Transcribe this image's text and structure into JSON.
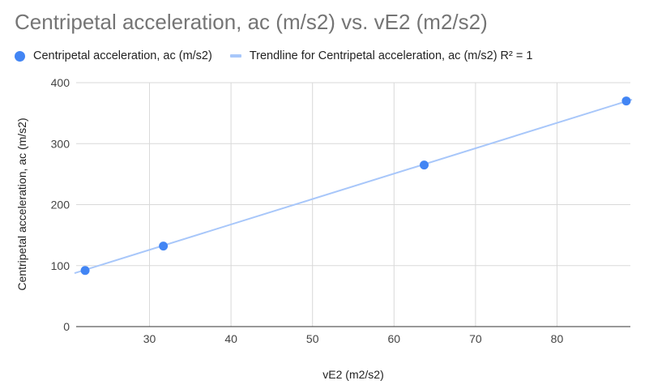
{
  "chart_data": {
    "type": "scatter",
    "title": "Centripetal acceleration, ac (m/s2) vs. vE2 (m2/s2)",
    "xlabel": "vE2 (m2/s2)",
    "ylabel": "Centripetal acceleration, ac (m/s2)",
    "xlim": [
      21,
      89
    ],
    "ylim": [
      0,
      400
    ],
    "xticks": [
      30,
      40,
      50,
      60,
      70,
      80
    ],
    "yticks": [
      0,
      100,
      200,
      300,
      400
    ],
    "grid": true,
    "legend_position": "top",
    "series": [
      {
        "name": "Centripetal acceleration, ac (m/s2)",
        "color": "#4285f4",
        "points": [
          {
            "x": 22.1,
            "y": 92
          },
          {
            "x": 31.7,
            "y": 132
          },
          {
            "x": 63.7,
            "y": 265
          },
          {
            "x": 88.5,
            "y": 370
          }
        ]
      }
    ],
    "trendline": {
      "name": "Trendline for Centripetal acceleration, ac (m/s2) R² = 1",
      "color": "#a8c7fa",
      "slope": 4.163,
      "intercept": 1,
      "x_range": [
        20.8,
        89.2
      ]
    }
  }
}
